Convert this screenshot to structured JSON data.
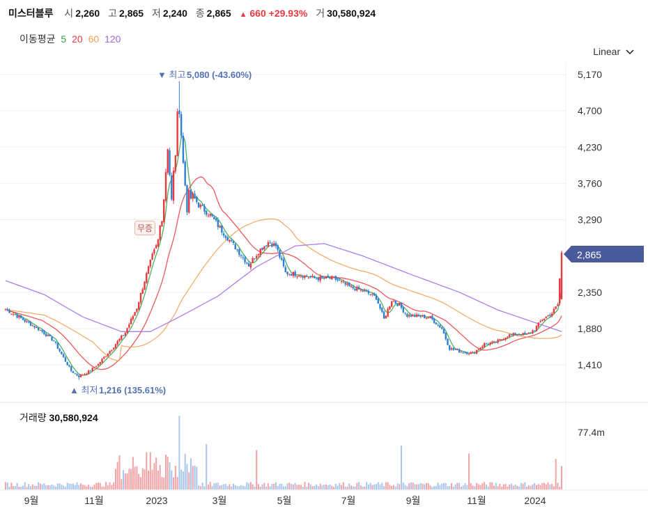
{
  "header": {
    "name": "미스터블루",
    "open_label": "시",
    "open": "2,260",
    "high_label": "고",
    "high": "2,865",
    "low_label": "저",
    "low": "2,240",
    "close_label": "종",
    "close": "2,865",
    "change_arrow": "▲",
    "change": "660",
    "change_pct": "+29.93%",
    "volume_label": "거",
    "volume": "30,580,924"
  },
  "moving_average": {
    "label": "이동평균",
    "periods": [
      {
        "value": "5",
        "color": "#2ea043"
      },
      {
        "value": "20",
        "color": "#e8393e"
      },
      {
        "value": "60",
        "color": "#f0a050"
      },
      {
        "value": "120",
        "color": "#a066e8"
      }
    ]
  },
  "scale_selector": {
    "label": "Linear"
  },
  "badge": {
    "text": "무증"
  },
  "volume_panel": {
    "label": "거래량",
    "value": "30,580,924"
  },
  "chart_data": {
    "type": "candlestick",
    "y_ticks": [
      "5,170",
      "4,700",
      "4,230",
      "3,760",
      "3,290",
      "2,350",
      "1,880",
      "1,410"
    ],
    "y_tick_values": [
      5170,
      4700,
      4230,
      3760,
      3290,
      2350,
      1880,
      1410
    ],
    "ylim": [
      1100,
      5300
    ],
    "x_ticks": [
      "9월",
      "11월",
      "2023",
      "3월",
      "5월",
      "7월",
      "9월",
      "11월",
      "2024"
    ],
    "current_price": "2,865",
    "current_price_value": 2865,
    "max_marker": {
      "prefix": "▼ 최고",
      "value": "5,080 (-43.60%)",
      "price": 5080
    },
    "min_marker": {
      "prefix": "▲ 최저",
      "value": "1,216 (135.61%)",
      "price": 1216
    },
    "volume_tick": "77.4m",
    "colors": {
      "up": "#e8393e",
      "down": "#2d7fd3",
      "ma5": "#2ea043",
      "ma20": "#e8393e",
      "ma60": "#f0a050",
      "ma120": "#a066e8",
      "tag": "#4a5b9b"
    },
    "close_anchors": [
      [
        0,
        2130
      ],
      [
        10,
        1980
      ],
      [
        18,
        1860
      ],
      [
        25,
        1720
      ],
      [
        30,
        1500
      ],
      [
        34,
        1330
      ],
      [
        38,
        1260
      ],
      [
        43,
        1320
      ],
      [
        48,
        1420
      ],
      [
        55,
        1620
      ],
      [
        62,
        1830
      ],
      [
        68,
        2150
      ],
      [
        72,
        2500
      ],
      [
        76,
        2820
      ],
      [
        79,
        3000
      ],
      [
        82,
        3600
      ],
      [
        84,
        4300
      ],
      [
        86,
        3500
      ],
      [
        88,
        4200
      ],
      [
        90,
        4850
      ],
      [
        92,
        4000
      ],
      [
        94,
        3500
      ],
      [
        97,
        3600
      ],
      [
        100,
        3480
      ],
      [
        106,
        3350
      ],
      [
        112,
        3150
      ],
      [
        120,
        2900
      ],
      [
        126,
        2700
      ],
      [
        131,
        2880
      ],
      [
        136,
        3000
      ],
      [
        140,
        2950
      ],
      [
        145,
        2600
      ],
      [
        152,
        2580
      ],
      [
        160,
        2530
      ],
      [
        170,
        2530
      ],
      [
        178,
        2420
      ],
      [
        186,
        2360
      ],
      [
        192,
        2280
      ],
      [
        196,
        2000
      ],
      [
        200,
        2250
      ],
      [
        204,
        2180
      ],
      [
        208,
        2050
      ],
      [
        214,
        2040
      ],
      [
        220,
        2020
      ],
      [
        226,
        1880
      ],
      [
        230,
        1620
      ],
      [
        236,
        1580
      ],
      [
        242,
        1560
      ],
      [
        248,
        1680
      ],
      [
        254,
        1700
      ],
      [
        260,
        1790
      ],
      [
        266,
        1810
      ],
      [
        270,
        1800
      ],
      [
        274,
        1870
      ],
      [
        278,
        2000
      ],
      [
        283,
        2080
      ],
      [
        286,
        2190
      ],
      [
        288,
        2865
      ]
    ],
    "ma120_anchors": [
      [
        0,
        2500
      ],
      [
        20,
        2320
      ],
      [
        40,
        2030
      ],
      [
        60,
        1840
      ],
      [
        75,
        1840
      ],
      [
        90,
        2030
      ],
      [
        110,
        2300
      ],
      [
        130,
        2680
      ],
      [
        150,
        2950
      ],
      [
        165,
        2980
      ],
      [
        185,
        2820
      ],
      [
        210,
        2580
      ],
      [
        235,
        2350
      ],
      [
        255,
        2120
      ],
      [
        275,
        1950
      ],
      [
        288,
        1840
      ]
    ]
  }
}
